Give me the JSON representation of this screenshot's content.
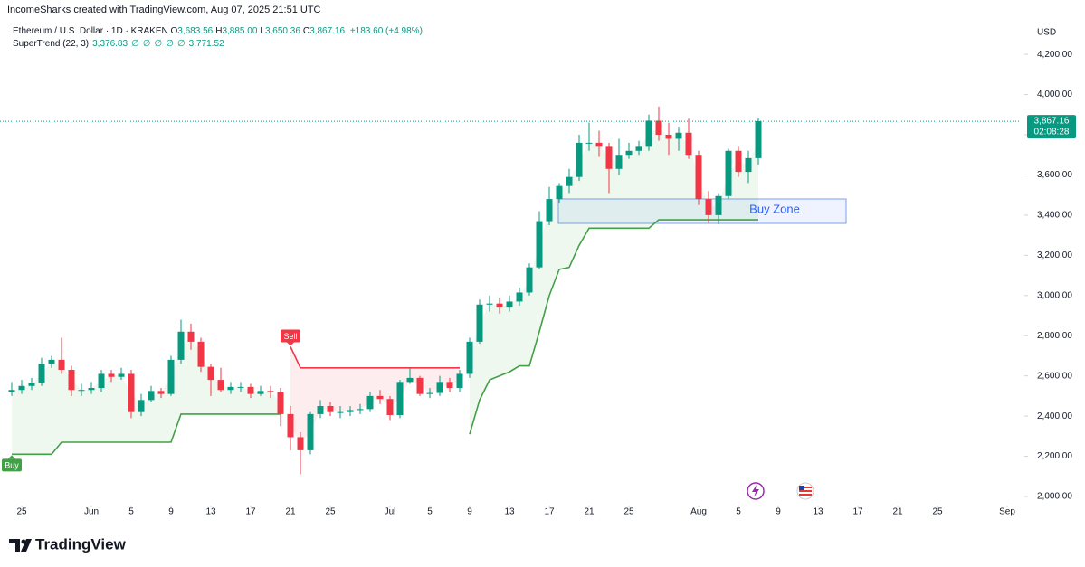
{
  "header": {
    "source": "IncomeSharks created with TradingView.com, Aug 07, 2025 21:51 UTC",
    "symbol": "Ethereum / U.S. Dollar · 1D · KRAKEN",
    "ohlc": [
      [
        "O",
        "3,683.56"
      ],
      [
        "H",
        "3,885.00"
      ],
      [
        "L",
        "3,650.36"
      ],
      [
        "C",
        "3,867.16"
      ]
    ],
    "change": "+183.60 (+4.98%)",
    "indicator": {
      "name": "SuperTrend (22, 3)",
      "values": [
        "3,376.83",
        "∅",
        "∅",
        "∅",
        "∅",
        "∅",
        "3,771.52"
      ]
    },
    "brand": "TradingView"
  },
  "chart_data": {
    "type": "candlestick",
    "currency": "USD",
    "up_color": "#089981",
    "down_color": "#f23645",
    "xlim": [
      "May 23",
      "Sep 2"
    ],
    "ylim": [
      1973,
      4358
    ],
    "yticks": [
      {
        "value": 2000,
        "label": "2,000.00"
      },
      {
        "value": 2200,
        "label": "2,200.00"
      },
      {
        "value": 2400,
        "label": "2,400.00"
      },
      {
        "value": 2600,
        "label": "2,600.00"
      },
      {
        "value": 2800,
        "label": "2,800.00"
      },
      {
        "value": 3000,
        "label": "3,000.00"
      },
      {
        "value": 3200,
        "label": "3,200.00"
      },
      {
        "value": 3400,
        "label": "3,400.00"
      },
      {
        "value": 3600,
        "label": "3,600.00"
      },
      {
        "value": 3800,
        "label": "3,800.00"
      },
      {
        "value": 4000,
        "label": "4,000.00"
      },
      {
        "value": 4200,
        "label": "4,200.00"
      }
    ],
    "xticks": [
      {
        "value": "May 25",
        "label": "25"
      },
      {
        "value": "Jun 1",
        "label": "Jun"
      },
      {
        "value": "Jun 5",
        "label": "5"
      },
      {
        "value": "Jun 9",
        "label": "9"
      },
      {
        "value": "Jun 13",
        "label": "13"
      },
      {
        "value": "Jun 17",
        "label": "17"
      },
      {
        "value": "Jun 21",
        "label": "21"
      },
      {
        "value": "Jun 25",
        "label": "25"
      },
      {
        "value": "Jul 1",
        "label": "Jul"
      },
      {
        "value": "Jul 5",
        "label": "5"
      },
      {
        "value": "Jul 9",
        "label": "9"
      },
      {
        "value": "Jul 13",
        "label": "13"
      },
      {
        "value": "Jul 17",
        "label": "17"
      },
      {
        "value": "Jul 21",
        "label": "21"
      },
      {
        "value": "Jul 25",
        "label": "25"
      },
      {
        "value": "Aug 1",
        "label": "Aug"
      },
      {
        "value": "Aug 5",
        "label": "5"
      },
      {
        "value": "Aug 9",
        "label": "9"
      },
      {
        "value": "Aug 13",
        "label": "13"
      },
      {
        "value": "Aug 17",
        "label": "17"
      },
      {
        "value": "Aug 21",
        "label": "21"
      },
      {
        "value": "Aug 25",
        "label": "25"
      },
      {
        "value": "Sep 1",
        "label": "Sep"
      }
    ],
    "x": [
      "May 24",
      "May 25",
      "May 26",
      "May 27",
      "May 28",
      "May 29",
      "May 30",
      "May 31",
      "Jun 1",
      "Jun 2",
      "Jun 3",
      "Jun 4",
      "Jun 5",
      "Jun 6",
      "Jun 7",
      "Jun 8",
      "Jun 9",
      "Jun 10",
      "Jun 11",
      "Jun 12",
      "Jun 13",
      "Jun 14",
      "Jun 15",
      "Jun 16",
      "Jun 17",
      "Jun 18",
      "Jun 19",
      "Jun 20",
      "Jun 21",
      "Jun 22",
      "Jun 23",
      "Jun 24",
      "Jun 25",
      "Jun 26",
      "Jun 27",
      "Jun 28",
      "Jun 29",
      "Jun 30",
      "Jul 1",
      "Jul 2",
      "Jul 3",
      "Jul 4",
      "Jul 5",
      "Jul 6",
      "Jul 7",
      "Jul 8",
      "Jul 9",
      "Jul 10",
      "Jul 11",
      "Jul 12",
      "Jul 13",
      "Jul 14",
      "Jul 15",
      "Jul 16",
      "Jul 17",
      "Jul 18",
      "Jul 19",
      "Jul 20",
      "Jul 21",
      "Jul 22",
      "Jul 23",
      "Jul 24",
      "Jul 25",
      "Jul 26",
      "Jul 27",
      "Jul 28",
      "Jul 29",
      "Jul 30",
      "Jul 31",
      "Aug 1",
      "Aug 2",
      "Aug 3",
      "Aug 4",
      "Aug 5",
      "Aug 6",
      "Aug 7"
    ],
    "open": [
      2520,
      2530,
      2550,
      2565,
      2660,
      2680,
      2630,
      2530,
      2530,
      2540,
      2610,
      2595,
      2610,
      2420,
      2480,
      2525,
      2510,
      2680,
      2820,
      2770,
      2645,
      2580,
      2530,
      2545,
      2545,
      2510,
      2525,
      2520,
      2410,
      2295,
      2230,
      2410,
      2450,
      2420,
      2420,
      2430,
      2435,
      2500,
      2485,
      2405,
      2570,
      2590,
      2510,
      2515,
      2570,
      2540,
      2610,
      2770,
      2955,
      2960,
      2940,
      2970,
      3015,
      3140,
      3370,
      3480,
      3545,
      3590,
      3760,
      3760,
      3740,
      3630,
      3700,
      3720,
      3740,
      3870,
      3800,
      3780,
      3810,
      3700,
      3480,
      3400,
      3495,
      3720,
      3615,
      3683.56
    ],
    "high": [
      2570,
      2580,
      2590,
      2690,
      2700,
      2790,
      2650,
      2560,
      2570,
      2630,
      2630,
      2640,
      2630,
      2510,
      2550,
      2540,
      2700,
      2880,
      2860,
      2790,
      2660,
      2640,
      2570,
      2570,
      2560,
      2550,
      2550,
      2540,
      2450,
      2320,
      2420,
      2480,
      2470,
      2450,
      2450,
      2460,
      2520,
      2530,
      2500,
      2580,
      2640,
      2600,
      2540,
      2600,
      2590,
      2630,
      2790,
      2980,
      3000,
      2990,
      3000,
      3040,
      3160,
      3420,
      3540,
      3560,
      3630,
      3800,
      3860,
      3820,
      3760,
      3780,
      3760,
      3770,
      3900,
      3940,
      3860,
      3840,
      3880,
      3720,
      3520,
      3510,
      3730,
      3740,
      3720,
      3885
    ],
    "low": [
      2500,
      2510,
      2530,
      2550,
      2640,
      2610,
      2500,
      2500,
      2510,
      2520,
      2570,
      2580,
      2390,
      2400,
      2470,
      2490,
      2500,
      2660,
      2730,
      2620,
      2500,
      2520,
      2510,
      2520,
      2490,
      2500,
      2490,
      2350,
      2230,
      2110,
      2210,
      2390,
      2400,
      2390,
      2400,
      2410,
      2420,
      2460,
      2380,
      2390,
      2560,
      2500,
      2490,
      2500,
      2520,
      2520,
      2590,
      2760,
      2920,
      2910,
      2920,
      2950,
      3000,
      3130,
      3350,
      3460,
      3510,
      3570,
      3720,
      3690,
      3510,
      3600,
      3680,
      3700,
      3720,
      3770,
      3700,
      3720,
      3680,
      3450,
      3360,
      3355,
      3480,
      3590,
      3560,
      3650.36
    ],
    "close": [
      2530,
      2550,
      2565,
      2660,
      2680,
      2630,
      2530,
      2530,
      2540,
      2610,
      2595,
      2610,
      2420,
      2480,
      2525,
      2510,
      2680,
      2820,
      2770,
      2645,
      2580,
      2530,
      2545,
      2545,
      2510,
      2525,
      2520,
      2410,
      2295,
      2230,
      2410,
      2450,
      2420,
      2420,
      2430,
      2435,
      2500,
      2485,
      2405,
      2570,
      2590,
      2510,
      2515,
      2570,
      2540,
      2610,
      2770,
      2955,
      2960,
      2940,
      2970,
      3015,
      3140,
      3370,
      3480,
      3545,
      3590,
      3760,
      3760,
      3740,
      3630,
      3700,
      3720,
      3740,
      3870,
      3800,
      3780,
      3810,
      3700,
      3480,
      3400,
      3495,
      3720,
      3615,
      3683.56,
      3867.16
    ],
    "supertrend": {
      "up_color": "#43a047",
      "down_color": "#f23645",
      "up": [
        2210,
        2210,
        2210,
        2210,
        2210,
        2270,
        2270,
        2270,
        2270,
        2270,
        2270,
        2270,
        2270,
        2270,
        2270,
        2270,
        2270,
        2410,
        2410,
        2410,
        2410,
        2410,
        2410,
        2410,
        2410,
        2410,
        2410,
        2410,
        null,
        null,
        null,
        null,
        null,
        null,
        null,
        null,
        null,
        null,
        null,
        null,
        null,
        null,
        null,
        null,
        null,
        null,
        2310,
        2480,
        2580,
        2600,
        2620,
        2650,
        2650,
        2820,
        3000,
        3130,
        3140,
        3250,
        3335,
        3335,
        3335,
        3335,
        3335,
        3335,
        3335,
        3376.83,
        3376.83,
        3376.83,
        3376.83,
        3376.83,
        3376.83,
        3376.83,
        3376.83,
        3376.83,
        3376.83,
        3376.83
      ],
      "down": [
        null,
        null,
        null,
        null,
        null,
        null,
        null,
        null,
        null,
        null,
        null,
        null,
        null,
        null,
        null,
        null,
        null,
        null,
        null,
        null,
        null,
        null,
        null,
        null,
        null,
        null,
        null,
        null,
        2745,
        2640,
        2640,
        2640,
        2640,
        2640,
        2640,
        2640,
        2640,
        2640,
        2640,
        2640,
        2640,
        2640,
        2640,
        2640,
        2640,
        2640,
        null,
        null,
        null,
        null,
        null,
        null,
        null,
        null,
        null,
        null,
        null,
        null,
        null,
        null,
        null,
        null,
        null,
        null,
        null,
        null,
        null,
        null,
        null,
        null,
        null,
        null,
        null,
        null,
        null,
        null
      ]
    },
    "price_tag": {
      "value": 3867.16,
      "label": "3,867.16",
      "countdown": "02:08:28"
    },
    "annotations": {
      "sell": "Sell",
      "buy": "Buy",
      "zone": "Buy Zone"
    }
  }
}
